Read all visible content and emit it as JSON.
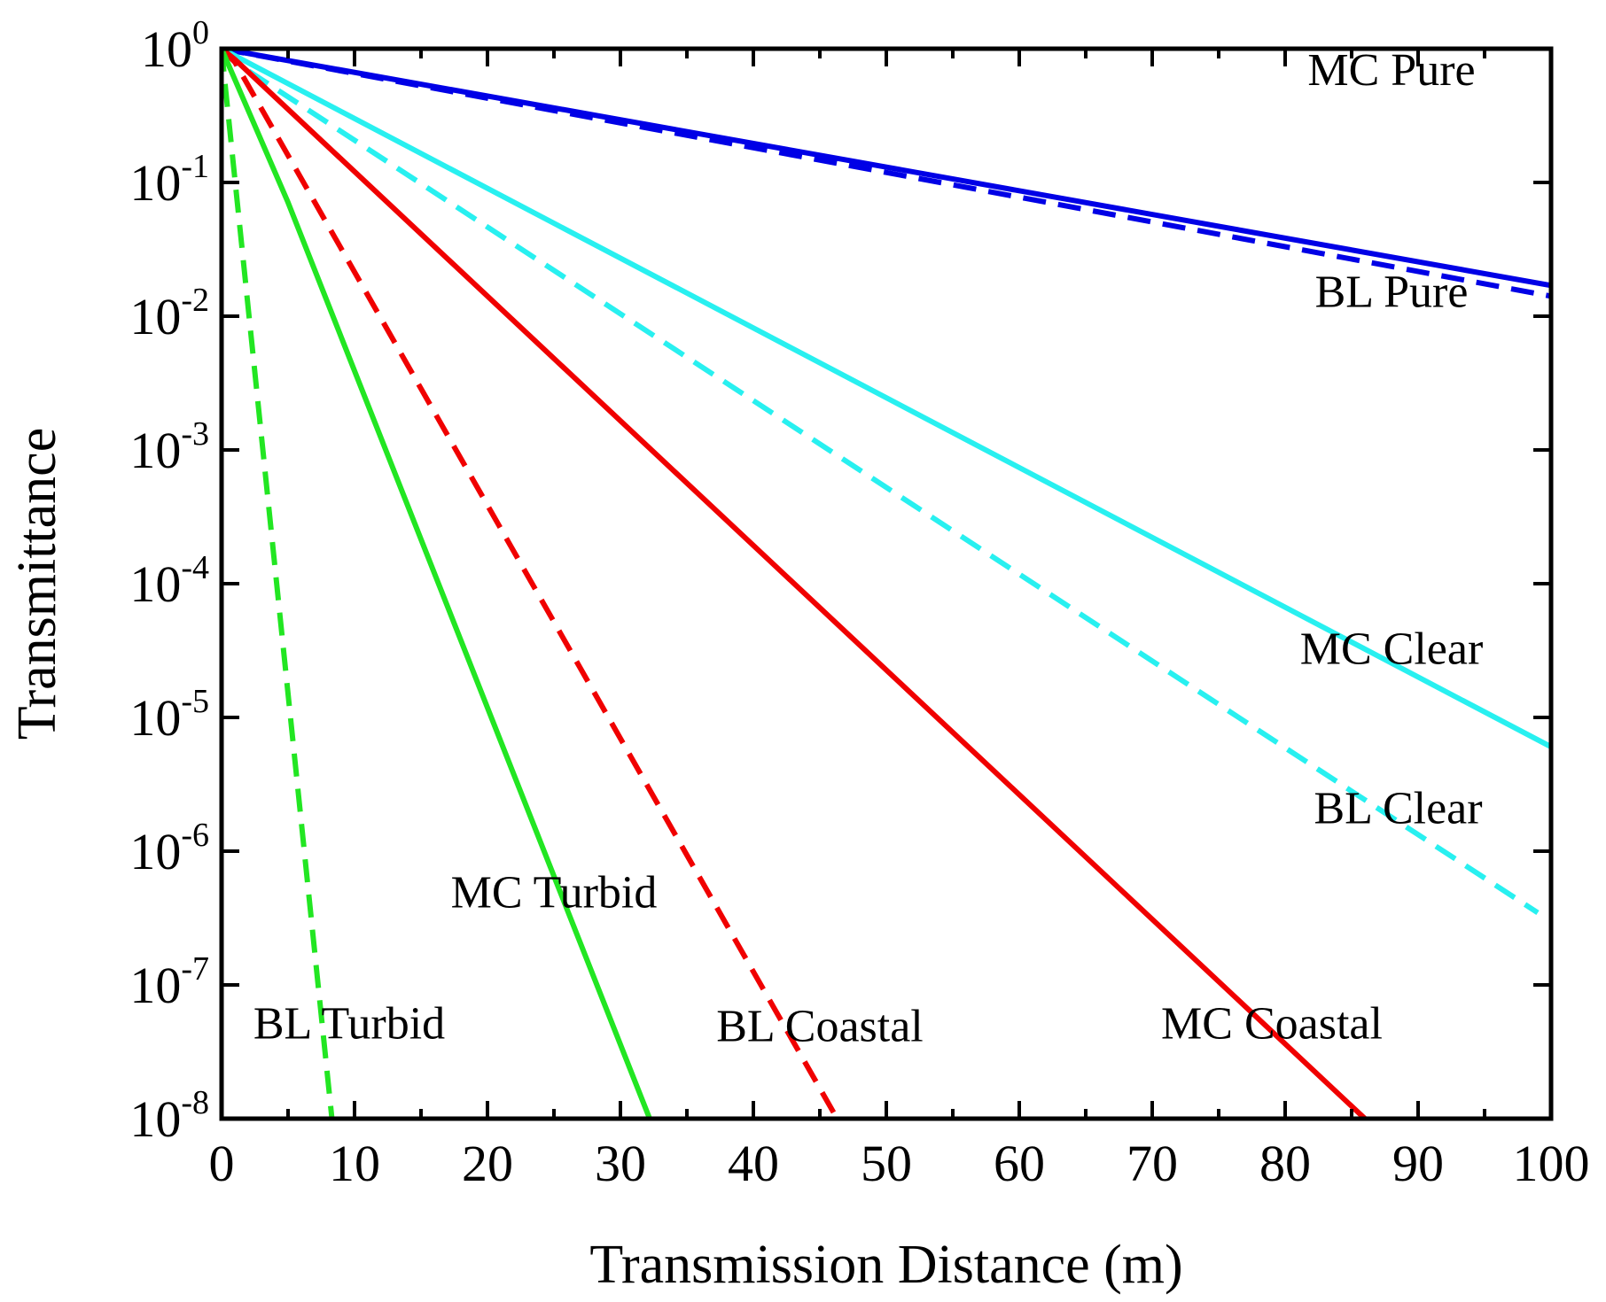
{
  "chart_data": {
    "type": "line",
    "title": "",
    "xlabel": "Transmission Distance (m)",
    "ylabel": "Transmittance",
    "xlim": [
      0,
      100
    ],
    "ylim": [
      1e-08,
      1
    ],
    "yscale": "log",
    "grid": false,
    "x_ticks": [
      0,
      10,
      20,
      30,
      40,
      50,
      60,
      70,
      80,
      90,
      100
    ],
    "x_tick_labels": [
      "0",
      "10",
      "20",
      "30",
      "40",
      "50",
      "60",
      "70",
      "80",
      "90",
      "100"
    ],
    "y_ticks": [
      0,
      -1,
      -2,
      -3,
      -4,
      -5,
      -6,
      -7,
      -8
    ],
    "y_tick_labels": [
      {
        "base": "10",
        "exp": "0"
      },
      {
        "base": "10",
        "exp": "-1"
      },
      {
        "base": "10",
        "exp": "-2"
      },
      {
        "base": "10",
        "exp": "-3"
      },
      {
        "base": "10",
        "exp": "-4"
      },
      {
        "base": "10",
        "exp": "-5"
      },
      {
        "base": "10",
        "exp": "-6"
      },
      {
        "base": "10",
        "exp": "-7"
      },
      {
        "base": "10",
        "exp": "-8"
      }
    ],
    "series": [
      {
        "name": "MC Pure",
        "color": "#0000e6",
        "dash": "solid",
        "x": [
          0,
          100
        ],
        "log10y": [
          0,
          -1.77
        ]
      },
      {
        "name": "BL Pure",
        "color": "#0000e6",
        "dash": "dashed",
        "x": [
          0,
          100
        ],
        "log10y": [
          0,
          -1.85
        ]
      },
      {
        "name": "MC Clear",
        "color": "#28f0f0",
        "dash": "solid",
        "x": [
          0,
          100
        ],
        "log10y": [
          0,
          -5.22
        ]
      },
      {
        "name": "BL Clear",
        "color": "#28f0f0",
        "dash": "dashed",
        "x": [
          0,
          1,
          99
        ],
        "log10y": [
          0,
          -0.1,
          -6.46
        ]
      },
      {
        "name": "MC Coastal",
        "color": "#f00000",
        "dash": "solid",
        "x": [
          0,
          1,
          86
        ],
        "log10y": [
          0,
          -0.08,
          -8.0
        ]
      },
      {
        "name": "BL Coastal",
        "color": "#f00000",
        "dash": "dashed",
        "x": [
          0,
          1,
          46.3
        ],
        "log10y": [
          0,
          -0.1,
          -8.0
        ]
      },
      {
        "name": "MC Turbid",
        "color": "#22e622",
        "dash": "solid",
        "x": [
          0,
          5,
          32.2
        ],
        "log10y": [
          0,
          -1.15,
          -8.0
        ]
      },
      {
        "name": "BL Turbid",
        "color": "#22e622",
        "dash": "dashed",
        "x": [
          0,
          0.3,
          8.3
        ],
        "log10y": [
          0,
          -0.3,
          -8.0
        ]
      }
    ],
    "annotations": [
      {
        "text": "MC Pure",
        "x": 88,
        "log10y": -0.27
      },
      {
        "text": "BL Pure",
        "x": 88,
        "log10y": -1.93
      },
      {
        "text": "MC Clear",
        "x": 88,
        "log10y": -4.6
      },
      {
        "text": "BL Clear",
        "x": 88.5,
        "log10y": -5.79
      },
      {
        "text": "MC Turbid",
        "x": 25,
        "log10y": -6.42
      },
      {
        "text": "BL Turbid",
        "x": 9.6,
        "log10y": -7.4
      },
      {
        "text": "BL Coastal",
        "x": 45,
        "log10y": -7.42
      },
      {
        "text": "MC Coastal",
        "x": 79,
        "log10y": -7.4
      }
    ]
  }
}
